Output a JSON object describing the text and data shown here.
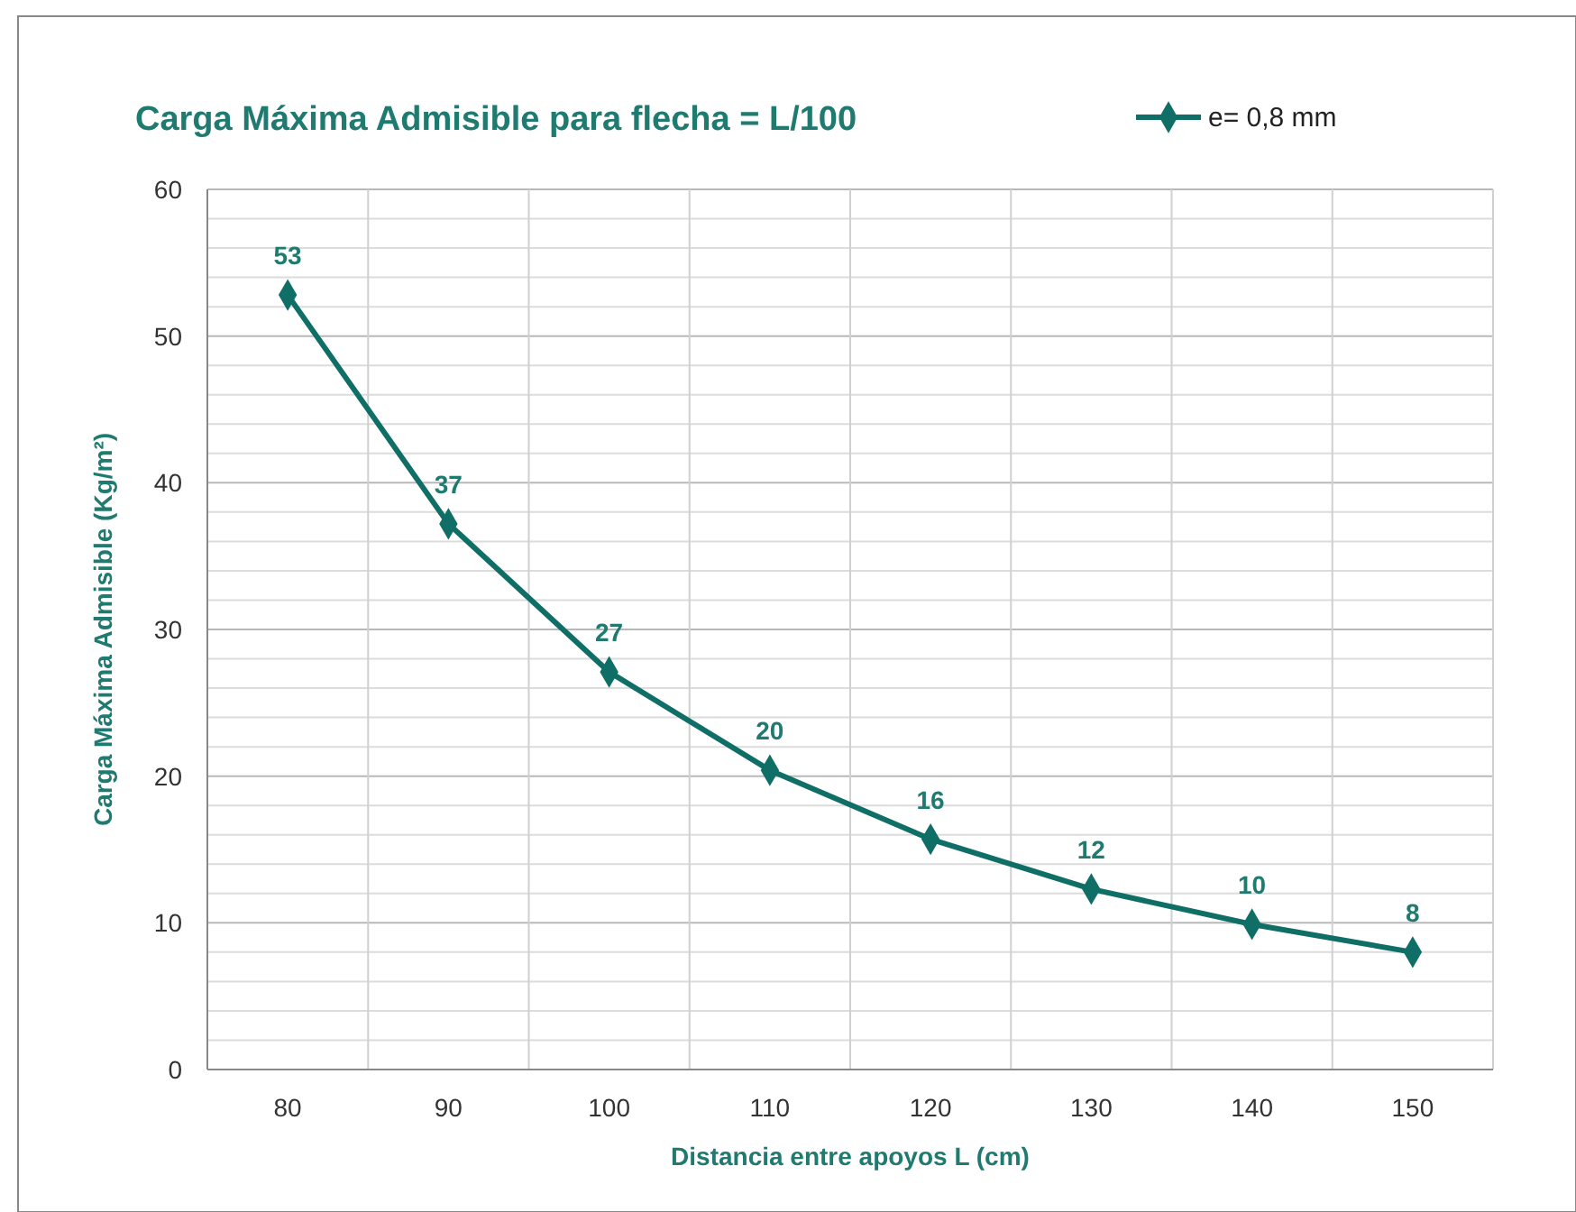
{
  "chart_data": {
    "type": "line",
    "title": "Carga Máxima Admisible para flecha = L/100",
    "xlabel": "Distancia entre apoyos L (cm)",
    "ylabel": "Carga Máxima Admisible (Kg/m²)",
    "categories": [
      "80",
      "90",
      "100",
      "110",
      "120",
      "130",
      "140",
      "150"
    ],
    "series": [
      {
        "name": "e= 0,8 mm",
        "color": "#0f6e65",
        "values": [
          52.8,
          37.2,
          27.1,
          20.4,
          15.7,
          12.3,
          9.9,
          8.0
        ],
        "value_labels": [
          "53",
          "37",
          "27",
          "20",
          "16",
          "12",
          "10",
          "8"
        ]
      }
    ],
    "ylim": [
      0,
      60
    ],
    "yticks": [
      0,
      {
        "value": 2,
        "label": null
      },
      {
        "value": 4,
        "label": null
      },
      {
        "value": 6,
        "label": null
      },
      {
        "value": 8,
        "label": null
      },
      10,
      {
        "value": 12,
        "label": null
      },
      {
        "value": 14,
        "label": null
      },
      {
        "value": 16,
        "label": null
      },
      {
        "value": 18,
        "label": null
      },
      20,
      {
        "value": 22,
        "label": null
      },
      {
        "value": 24,
        "label": null
      },
      {
        "value": 26,
        "label": null
      },
      {
        "value": 28,
        "label": null
      },
      30,
      {
        "value": 32,
        "label": null
      },
      {
        "value": 34,
        "label": null
      },
      {
        "value": 36,
        "label": null
      },
      {
        "value": 38,
        "label": null
      },
      40,
      {
        "value": 42,
        "label": null
      },
      {
        "value": 44,
        "label": null
      },
      {
        "value": 46,
        "label": null
      },
      {
        "value": 48,
        "label": null
      },
      50,
      {
        "value": 52,
        "label": null
      },
      {
        "value": 54,
        "label": null
      },
      {
        "value": 56,
        "label": null
      },
      {
        "value": 58,
        "label": null
      },
      60
    ],
    "grid": true,
    "legend": "top right",
    "marker": "diamond",
    "line_style": "solid"
  }
}
